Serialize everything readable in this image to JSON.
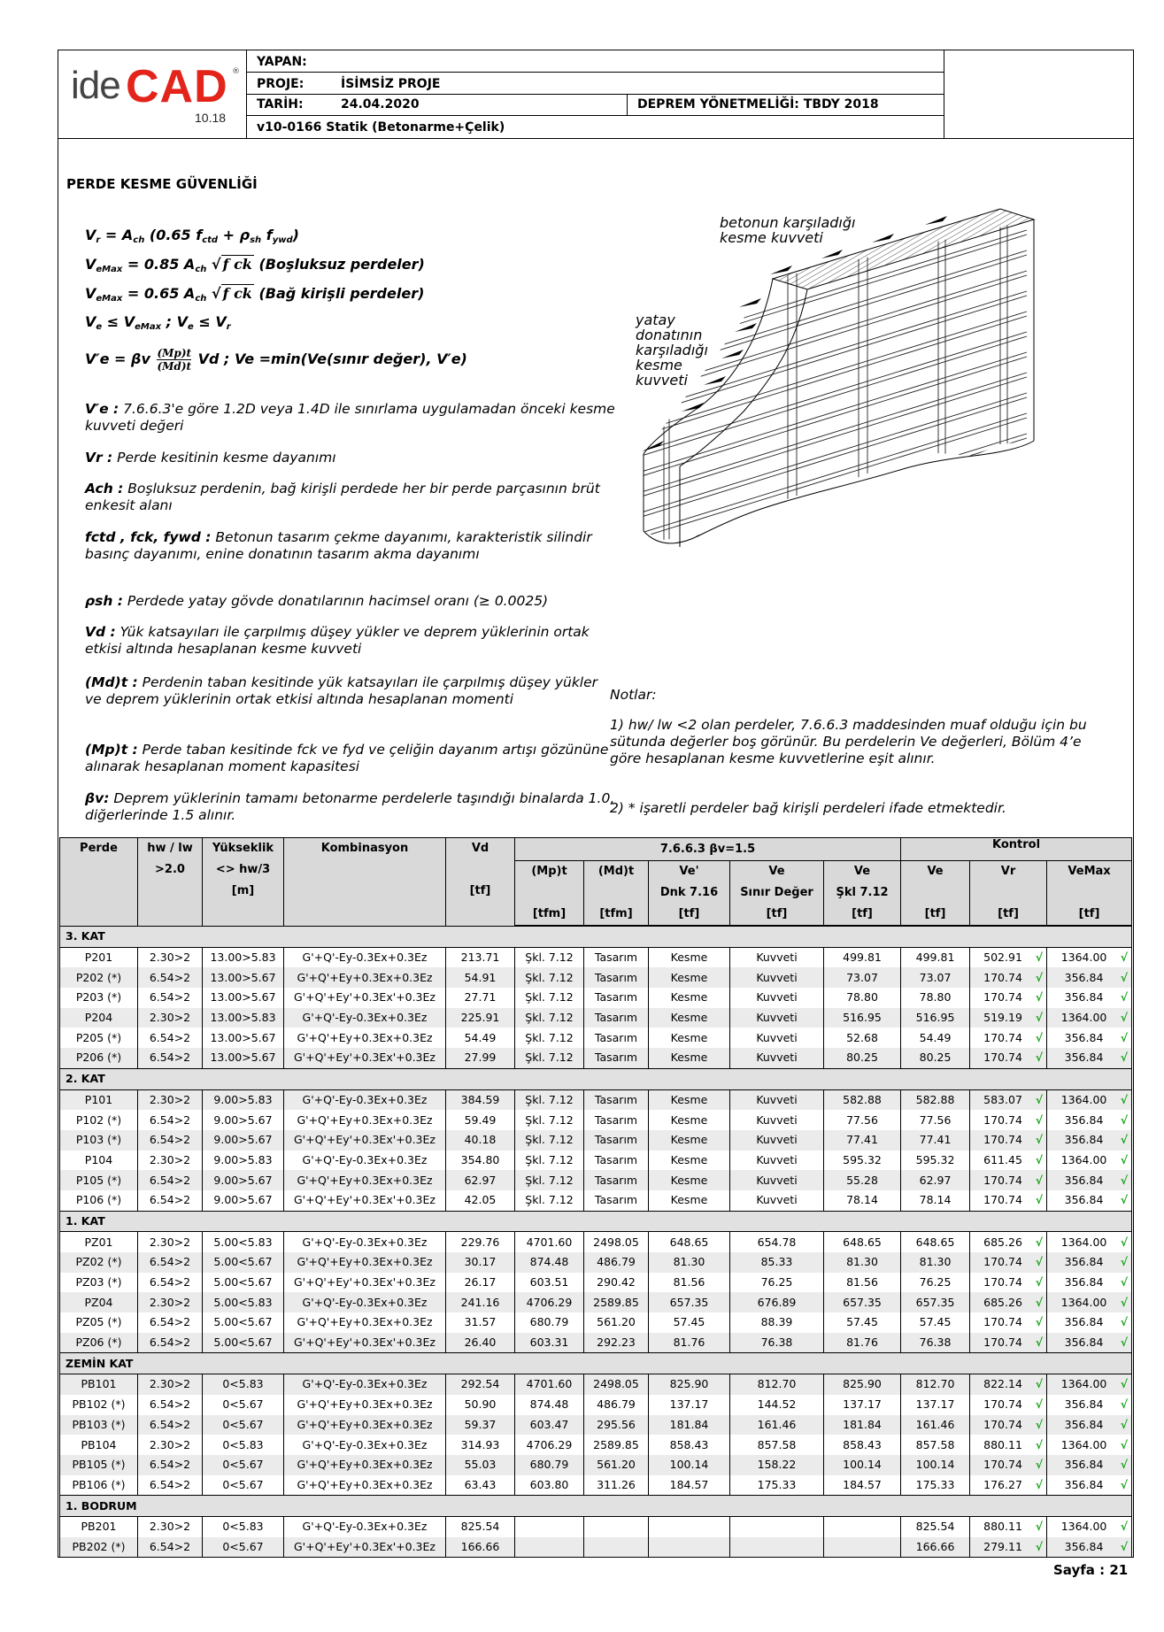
{
  "header": {
    "logo_text": "ideCAD",
    "logo_version": "10.18",
    "yapan_label": "YAPAN:",
    "proje_label": "PROJE:",
    "proje_value": "İSİMSİZ PROJE",
    "tarih_label": "TARİH:",
    "tarih_value": "24.04.2020",
    "yonetmelik": "DEPREM YÖNETMELİĞİ: TBDY 2018",
    "program": "v10-0166 Statik (Betonarme+Çelik)"
  },
  "title": "PERDE KESME GÜVENLİĞİ",
  "formulas": [
    [
      [
        "V",
        "b"
      ],
      [
        "r",
        "sub"
      ],
      [
        " = A",
        "b"
      ],
      [
        "ch",
        "sub"
      ],
      [
        " (0.65 f",
        "b"
      ],
      [
        "ctd",
        "sub"
      ],
      [
        " + ρ",
        "b"
      ],
      [
        "sh",
        "sub"
      ],
      [
        " f",
        "b"
      ],
      [
        "ywd",
        "sub"
      ],
      [
        ")",
        "b"
      ]
    ],
    [
      [
        "V",
        "b"
      ],
      [
        "eMax",
        "sub"
      ],
      [
        " = 0.85 A",
        "b"
      ],
      [
        "ch",
        "sub"
      ],
      [
        " √",
        "b"
      ],
      [
        "f ck",
        "ov"
      ],
      [
        " (Boşluksuz perdeler)",
        "b"
      ]
    ],
    [
      [
        "V",
        "b"
      ],
      [
        "eMax",
        "sub"
      ],
      [
        " = 0.65 A",
        "b"
      ],
      [
        "ch",
        "sub"
      ],
      [
        " √",
        "b"
      ],
      [
        "f ck",
        "ov"
      ],
      [
        " (Bağ kirişli perdeler)",
        "b"
      ]
    ],
    [
      [
        "V",
        "b"
      ],
      [
        "e",
        "sub"
      ],
      [
        " ≤ V",
        "b"
      ],
      [
        "eMax",
        "sub"
      ],
      [
        " ; V",
        "b"
      ],
      [
        "e",
        "sub"
      ],
      [
        " ≤ V",
        "b"
      ],
      [
        "r",
        "sub"
      ]
    ]
  ],
  "formula5": {
    "lhs": "V′e = βv",
    "num": "(Mp)t",
    "den": "(Md)t",
    "rhs": "Vd ; Ve =min(Ve(sınır değer), V′e)"
  },
  "descriptions": [
    {
      "sym": "V′e :",
      "text": " 7.6.6.3'e göre 1.2D veya 1.4D ile sınırlama uygulamadan önceki kesme kuvveti değeri"
    },
    {
      "sym": "Vr :",
      "text": " Perde kesitinin kesme dayanımı"
    },
    {
      "sym": "Ach :",
      "text": "  Boşluksuz perdenin, bağ kirişli perdede her bir perde parçasının brüt enkesit alanı"
    },
    {
      "sym": "fctd , fck, fywd :",
      "text": " Betonun tasarım çekme dayanımı, karakteristik silindir basınç dayanımı, enine donatının tasarım akma dayanımı"
    },
    {
      "sym": "ρsh :",
      "text": " Perdede yatay gövde donatılarının hacimsel oranı (≥ 0.0025)"
    },
    {
      "sym": "Vd :",
      "text": " Yük katsayıları ile çarpılmış düşey yükler ve deprem yüklerinin ortak etkisi altında hesaplanan kesme kuvveti"
    },
    {
      "sym": "(Md)t :",
      "text": " Perdenin taban kesitinde yük katsayıları ile çarpılmış düşey yükler ve deprem yüklerinin ortak etkisi altında hesaplanan momenti"
    },
    {
      "sym": "(Mp)t :",
      "text": " Perde taban kesitinde fck  ve fyd ve çeliğin dayanım artışı gözününe alınarak hesaplanan moment kapasitesi"
    },
    {
      "sym": "βv:",
      "text": " Deprem yüklerinin tamamı betonarme perdelerle taşındığı binalarda 1.0, diğerlerinde 1.5 alınır."
    }
  ],
  "diagram": {
    "label_concrete": [
      "betonun karşıladığı",
      "kesme kuvveti"
    ],
    "label_rebar": [
      "yatay",
      "donatının",
      "karşıladığı",
      "kesme",
      "kuvveti"
    ]
  },
  "notes": {
    "title": "Notlar:",
    "items": [
      "1) hw/ lw <2 olan perdeler, 7.6.6.3 maddesinden muaf olduğu için bu sütunda değerler boş görünür. Bu perdelerin Ve değerleri, Bölüm 4’e göre hesaplanan kesme kuvvetlerine eşit alınır.",
      "2) * işaretli perdeler bağ kirişli perdeleri ifade etmektedir."
    ]
  },
  "table": {
    "group_headers": {
      "beta": "7.6.6.3 βv=1.5",
      "kontrol": "Kontrol"
    },
    "columns": [
      [
        "Perde",
        "",
        ""
      ],
      [
        "hw / lw",
        ">2.0",
        ""
      ],
      [
        "Yükseklik",
        "<> hw/3",
        "[m]"
      ],
      [
        "Kombinasyon",
        "",
        ""
      ],
      [
        "Vd",
        "",
        "[tf]"
      ],
      [
        "(Mp)t",
        "",
        "[tfm]"
      ],
      [
        "(Md)t",
        "",
        "[tfm]"
      ],
      [
        "Ve'",
        "Dnk 7.16",
        "[tf]"
      ],
      [
        "Ve",
        "Sınır Değer",
        "[tf]"
      ],
      [
        "Ve",
        "Şkl 7.12",
        "[tf]"
      ],
      [
        "Ve",
        "",
        "[tf]"
      ],
      [
        "Vr",
        "",
        "[tf]"
      ],
      [
        "VeMax",
        "",
        "[tf]"
      ]
    ],
    "check_color": "#1aa51a",
    "sections": [
      {
        "name": "3. KAT",
        "rows": [
          [
            "P201",
            "2.30>2",
            "13.00>5.83",
            "G'+Q'-Ey-0.3Ex+0.3Ez",
            "213.71",
            "Şkl. 7.12",
            "Tasarım",
            "Kesme",
            "Kuvveti",
            "499.81",
            "499.81",
            "502.91",
            "1364.00"
          ],
          [
            "P202 (*)",
            "6.54>2",
            "13.00>5.67",
            "G'+Q'+Ey+0.3Ex+0.3Ez",
            "54.91",
            "Şkl. 7.12",
            "Tasarım",
            "Kesme",
            "Kuvveti",
            "73.07",
            "73.07",
            "170.74",
            "356.84"
          ],
          [
            "P203 (*)",
            "6.54>2",
            "13.00>5.67",
            "G'+Q'+Ey'+0.3Ex'+0.3Ez",
            "27.71",
            "Şkl. 7.12",
            "Tasarım",
            "Kesme",
            "Kuvveti",
            "78.80",
            "78.80",
            "170.74",
            "356.84"
          ],
          [
            "P204",
            "2.30>2",
            "13.00>5.83",
            "G'+Q'-Ey-0.3Ex+0.3Ez",
            "225.91",
            "Şkl. 7.12",
            "Tasarım",
            "Kesme",
            "Kuvveti",
            "516.95",
            "516.95",
            "519.19",
            "1364.00"
          ],
          [
            "P205 (*)",
            "6.54>2",
            "13.00>5.67",
            "G'+Q'+Ey+0.3Ex+0.3Ez",
            "54.49",
            "Şkl. 7.12",
            "Tasarım",
            "Kesme",
            "Kuvveti",
            "52.68",
            "54.49",
            "170.74",
            "356.84"
          ],
          [
            "P206 (*)",
            "6.54>2",
            "13.00>5.67",
            "G'+Q'+Ey'+0.3Ex'+0.3Ez",
            "27.99",
            "Şkl. 7.12",
            "Tasarım",
            "Kesme",
            "Kuvveti",
            "80.25",
            "80.25",
            "170.74",
            "356.84"
          ]
        ]
      },
      {
        "name": "2. KAT",
        "rows": [
          [
            "P101",
            "2.30>2",
            "9.00>5.83",
            "G'+Q'-Ey-0.3Ex+0.3Ez",
            "384.59",
            "Şkl. 7.12",
            "Tasarım",
            "Kesme",
            "Kuvveti",
            "582.88",
            "582.88",
            "583.07",
            "1364.00"
          ],
          [
            "P102 (*)",
            "6.54>2",
            "9.00>5.67",
            "G'+Q'+Ey+0.3Ex+0.3Ez",
            "59.49",
            "Şkl. 7.12",
            "Tasarım",
            "Kesme",
            "Kuvveti",
            "77.56",
            "77.56",
            "170.74",
            "356.84"
          ],
          [
            "P103 (*)",
            "6.54>2",
            "9.00>5.67",
            "G'+Q'+Ey'+0.3Ex'+0.3Ez",
            "40.18",
            "Şkl. 7.12",
            "Tasarım",
            "Kesme",
            "Kuvveti",
            "77.41",
            "77.41",
            "170.74",
            "356.84"
          ],
          [
            "P104",
            "2.30>2",
            "9.00>5.83",
            "G'+Q'-Ey-0.3Ex+0.3Ez",
            "354.80",
            "Şkl. 7.12",
            "Tasarım",
            "Kesme",
            "Kuvveti",
            "595.32",
            "595.32",
            "611.45",
            "1364.00"
          ],
          [
            "P105 (*)",
            "6.54>2",
            "9.00>5.67",
            "G'+Q'+Ey+0.3Ex+0.3Ez",
            "62.97",
            "Şkl. 7.12",
            "Tasarım",
            "Kesme",
            "Kuvveti",
            "55.28",
            "62.97",
            "170.74",
            "356.84"
          ],
          [
            "P106 (*)",
            "6.54>2",
            "9.00>5.67",
            "G'+Q'+Ey'+0.3Ex'+0.3Ez",
            "42.05",
            "Şkl. 7.12",
            "Tasarım",
            "Kesme",
            "Kuvveti",
            "78.14",
            "78.14",
            "170.74",
            "356.84"
          ]
        ]
      },
      {
        "name": "1. KAT",
        "rows": [
          [
            "PZ01",
            "2.30>2",
            "5.00<5.83",
            "G'+Q'-Ey-0.3Ex+0.3Ez",
            "229.76",
            "4701.60",
            "2498.05",
            "648.65",
            "654.78",
            "648.65",
            "648.65",
            "685.26",
            "1364.00"
          ],
          [
            "PZ02 (*)",
            "6.54>2",
            "5.00<5.67",
            "G'+Q'+Ey+0.3Ex+0.3Ez",
            "30.17",
            "874.48",
            "486.79",
            "81.30",
            "85.33",
            "81.30",
            "81.30",
            "170.74",
            "356.84"
          ],
          [
            "PZ03 (*)",
            "6.54>2",
            "5.00<5.67",
            "G'+Q'+Ey'+0.3Ex'+0.3Ez",
            "26.17",
            "603.51",
            "290.42",
            "81.56",
            "76.25",
            "81.56",
            "76.25",
            "170.74",
            "356.84"
          ],
          [
            "PZ04",
            "2.30>2",
            "5.00<5.83",
            "G'+Q'-Ey-0.3Ex+0.3Ez",
            "241.16",
            "4706.29",
            "2589.85",
            "657.35",
            "676.89",
            "657.35",
            "657.35",
            "685.26",
            "1364.00"
          ],
          [
            "PZ05 (*)",
            "6.54>2",
            "5.00<5.67",
            "G'+Q'+Ey+0.3Ex+0.3Ez",
            "31.57",
            "680.79",
            "561.20",
            "57.45",
            "88.39",
            "57.45",
            "57.45",
            "170.74",
            "356.84"
          ],
          [
            "PZ06 (*)",
            "6.54>2",
            "5.00<5.67",
            "G'+Q'+Ey'+0.3Ex'+0.3Ez",
            "26.40",
            "603.31",
            "292.23",
            "81.76",
            "76.38",
            "81.76",
            "76.38",
            "170.74",
            "356.84"
          ]
        ]
      },
      {
        "name": "ZEMİN KAT",
        "rows": [
          [
            "PB101",
            "2.30>2",
            "0<5.83",
            "G'+Q'-Ey-0.3Ex+0.3Ez",
            "292.54",
            "4701.60",
            "2498.05",
            "825.90",
            "812.70",
            "825.90",
            "812.70",
            "822.14",
            "1364.00"
          ],
          [
            "PB102 (*)",
            "6.54>2",
            "0<5.67",
            "G'+Q'+Ey+0.3Ex+0.3Ez",
            "50.90",
            "874.48",
            "486.79",
            "137.17",
            "144.52",
            "137.17",
            "137.17",
            "170.74",
            "356.84"
          ],
          [
            "PB103 (*)",
            "6.54>2",
            "0<5.67",
            "G'+Q'+Ey+0.3Ex+0.3Ez",
            "59.37",
            "603.47",
            "295.56",
            "181.84",
            "161.46",
            "181.84",
            "161.46",
            "170.74",
            "356.84"
          ],
          [
            "PB104",
            "2.30>2",
            "0<5.83",
            "G'+Q'-Ey-0.3Ex+0.3Ez",
            "314.93",
            "4706.29",
            "2589.85",
            "858.43",
            "857.58",
            "858.43",
            "857.58",
            "880.11",
            "1364.00"
          ],
          [
            "PB105 (*)",
            "6.54>2",
            "0<5.67",
            "G'+Q'+Ey+0.3Ex+0.3Ez",
            "55.03",
            "680.79",
            "561.20",
            "100.14",
            "158.22",
            "100.14",
            "100.14",
            "170.74",
            "356.84"
          ],
          [
            "PB106 (*)",
            "6.54>2",
            "0<5.67",
            "G'+Q'+Ey+0.3Ex+0.3Ez",
            "63.43",
            "603.80",
            "311.26",
            "184.57",
            "175.33",
            "184.57",
            "175.33",
            "176.27",
            "356.84"
          ]
        ]
      },
      {
        "name": "1. BODRUM",
        "rows": [
          [
            "PB201",
            "2.30>2",
            "0<5.83",
            "G'+Q'-Ey-0.3Ex+0.3Ez",
            "825.54",
            "",
            "",
            "",
            "",
            "",
            "825.54",
            "880.11",
            "1364.00"
          ],
          [
            "PB202 (*)",
            "6.54>2",
            "0<5.67",
            "G'+Q'+Ey'+0.3Ex'+0.3Ez",
            "166.66",
            "",
            "",
            "",
            "",
            "",
            "166.66",
            "279.11",
            "356.84"
          ]
        ]
      }
    ]
  },
  "footer": {
    "page": "Sayfa : 21"
  }
}
